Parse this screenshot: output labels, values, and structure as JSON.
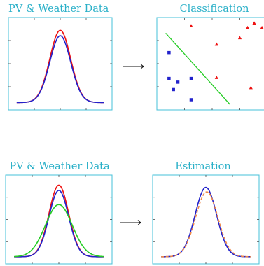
{
  "colors": {
    "title": "#2ab0c8",
    "frame": "#45c0d8",
    "tick": "#333333",
    "red": "#ee1111",
    "blue": "#2222cc",
    "green": "#22cc22",
    "orange_dash": "#f08a4a",
    "arrow": "#111111"
  },
  "panels": {
    "top_left": {
      "title": "PV & Weather Data"
    },
    "top_right": {
      "title": "Classification"
    },
    "bottom_left": {
      "title": "PV & Weather Data"
    },
    "bottom_right": {
      "title": "Estimation"
    }
  },
  "chart_data": [
    {
      "type": "line",
      "panel": "top_left",
      "title": "PV & Weather Data",
      "x_range": [
        0,
        1
      ],
      "y_range": [
        0,
        1
      ],
      "series": [
        {
          "color": "#ee1111",
          "center": 0.5,
          "width": 0.12,
          "peak": 0.93
        },
        {
          "color": "#2222cc",
          "center": 0.5,
          "width": 0.12,
          "peak": 0.86
        }
      ]
    },
    {
      "type": "scatter",
      "panel": "top_right",
      "title": "Classification",
      "x_range": [
        0,
        1
      ],
      "y_range": [
        0,
        1
      ],
      "class_a_triangles": [
        [
          0.31,
          0.91
        ],
        [
          0.54,
          0.71
        ],
        [
          0.75,
          0.78
        ],
        [
          0.82,
          0.89
        ],
        [
          0.88,
          0.94
        ],
        [
          0.95,
          0.89
        ],
        [
          0.54,
          0.35
        ],
        [
          0.85,
          0.24
        ]
      ],
      "class_b_squares": [
        [
          0.11,
          0.62
        ],
        [
          0.11,
          0.34
        ],
        [
          0.19,
          0.3
        ],
        [
          0.15,
          0.22
        ],
        [
          0.31,
          0.34
        ],
        [
          0.31,
          0.11
        ]
      ],
      "boundary": [
        [
          0.08,
          0.83
        ],
        [
          0.66,
          0.06
        ]
      ]
    },
    {
      "type": "line",
      "panel": "bottom_left",
      "title": "PV & Weather Data",
      "x_range": [
        0,
        1
      ],
      "y_range": [
        0,
        1
      ],
      "series": [
        {
          "color": "#ee1111",
          "center": 0.5,
          "width": 0.11,
          "peak": 0.96
        },
        {
          "color": "#2222cc",
          "center": 0.5,
          "width": 0.11,
          "peak": 0.89
        },
        {
          "color": "#22cc22",
          "center": 0.5,
          "width": 0.15,
          "peak": 0.7
        }
      ]
    },
    {
      "type": "line",
      "panel": "bottom_right",
      "title": "Estimation",
      "x_range": [
        0,
        1
      ],
      "y_range": [
        0,
        1
      ],
      "series": [
        {
          "color": "#2222cc",
          "center": 0.5,
          "width": 0.12,
          "peak": 0.93
        },
        {
          "color": "#f08a4a",
          "center": 0.51,
          "width": 0.125,
          "peak": 0.87,
          "dashed": true
        }
      ]
    }
  ]
}
